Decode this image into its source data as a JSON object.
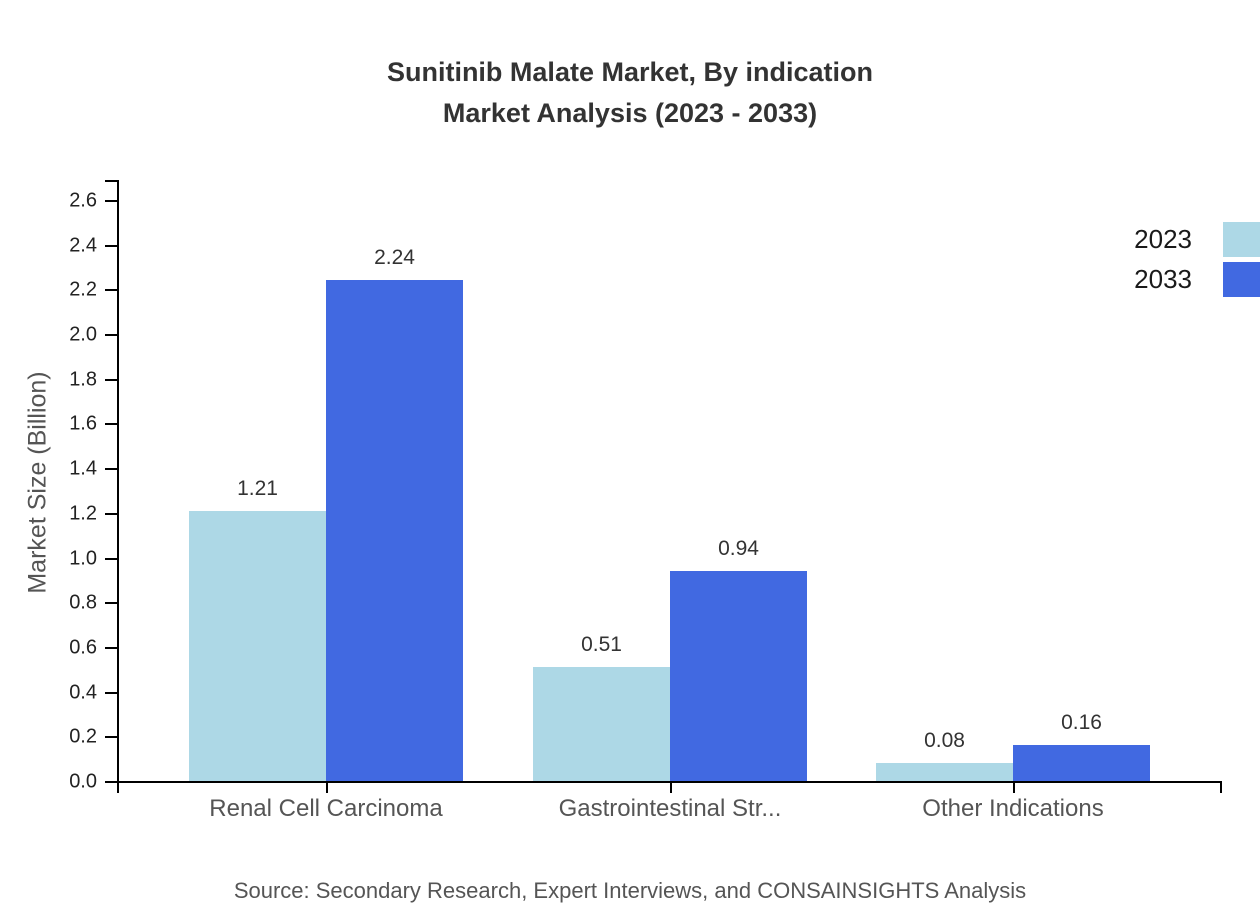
{
  "chart_data": {
    "type": "bar",
    "title": "Sunitinib Malate Market, By indication",
    "subtitle": "Market Analysis (2023 - 2033)",
    "categories": [
      "Renal Cell Carcinoma",
      "Gastrointestinal Str...",
      "Other Indications"
    ],
    "series": [
      {
        "name": "2023",
        "color": "#ADD8E6",
        "values": [
          1.21,
          0.51,
          0.08
        ]
      },
      {
        "name": "2033",
        "color": "#4169E1",
        "values": [
          2.24,
          0.94,
          0.16
        ]
      }
    ],
    "xlabel": "",
    "ylabel": "Market Size (Billion)",
    "ylim": [
      0,
      2.6
    ],
    "ytick_step": 0.2,
    "grid": false,
    "legend_position": "right",
    "value_labels": true,
    "source": "Source: Secondary Research, Expert Interviews, and CONSAINSIGHTS Analysis"
  }
}
